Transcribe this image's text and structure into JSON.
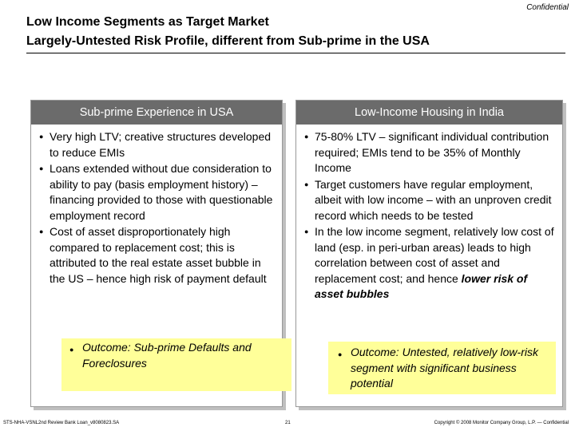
{
  "header": {
    "confidential": "Confidential",
    "title_line1": "Low Income Segments as Target Market",
    "title_line2": "Largely-Untested Risk Profile, different from Sub-prime in the USA"
  },
  "left_panel": {
    "heading": "Sub-prime Experience in USA",
    "bullets": [
      "Very high LTV; creative structures developed to reduce EMIs",
      "Loans extended without due consideration to ability to pay (basis employment history) – financing provided to those with questionable employment record",
      "Cost of asset disproportionately high compared to replacement cost; this is attributed to the real estate asset bubble in the US – hence high risk of payment default"
    ],
    "outcome": "Outcome: Sub-prime Defaults and Foreclosures"
  },
  "right_panel": {
    "heading": "Low-Income Housing in India",
    "bullets": [
      "75-80% LTV – significant individual contribution required; EMIs tend to be 35% of Monthly Income",
      "Target customers have regular employment, albeit with low income – with an unproven credit record which needs to be tested"
    ],
    "bullet3_text": "In the low income segment, relatively low cost of land (esp. in peri-urban areas) leads to high correlation between cost of asset and replacement cost; and hence ",
    "bullet3_emphasis": "lower risk of asset bubbles",
    "outcome": "Outcome: Untested, relatively low-risk segment with significant business potential"
  },
  "footer": {
    "left": "STS-NHA-VSNL2nd Review Bank Loan_v8080823.SA",
    "page_number": "21",
    "right": "Copyright © 2008 Monitor Company Group, L.P. — Confidential"
  }
}
